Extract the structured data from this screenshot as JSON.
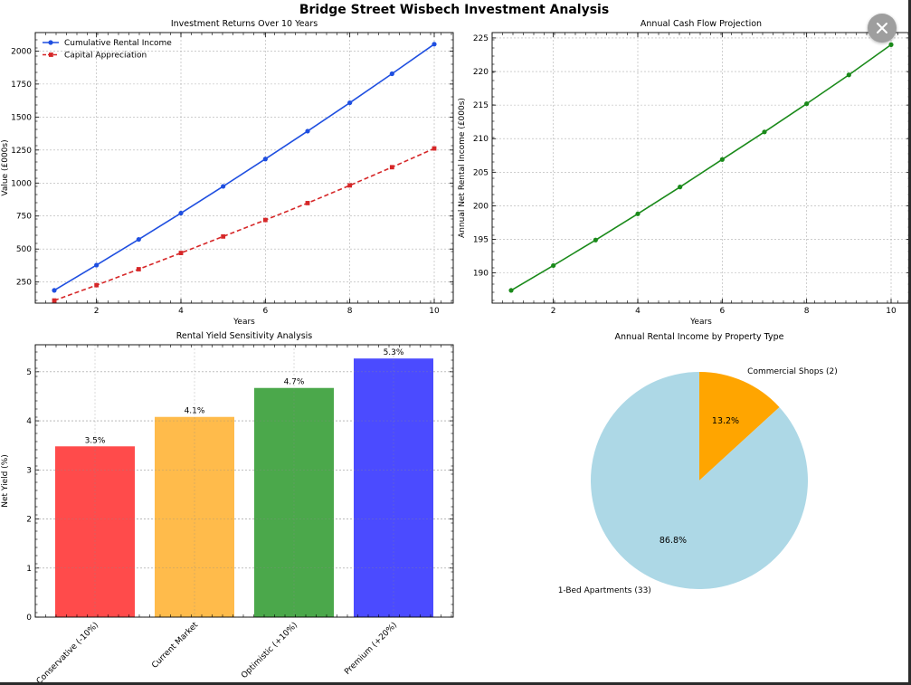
{
  "window": {
    "suptitle": "Bridge Street Wisbech Investment Analysis",
    "close_icon": "close-icon",
    "colors": {
      "close_bg": "#9e9e9e",
      "frame": "#2b2b2b"
    }
  },
  "chart_data": [
    {
      "type": "line",
      "title": "Investment Returns Over 10 Years",
      "xlabel": "Years",
      "ylabel": "Value (£000s)",
      "xlim": [
        0.55,
        10.45
      ],
      "ylim": [
        90,
        2140
      ],
      "xticks": [
        2,
        4,
        6,
        8,
        10
      ],
      "yticks": [
        250,
        500,
        750,
        1000,
        1250,
        1500,
        1750,
        2000
      ],
      "grid": true,
      "legend": "top-left",
      "x": [
        1,
        2,
        3,
        4,
        5,
        6,
        7,
        8,
        9,
        10
      ],
      "series": [
        {
          "name": "Cumulative Rental Income",
          "color": "#1f4fe0",
          "dash": "solid",
          "marker": "circle",
          "values": [
            187,
            378,
            573,
            772,
            975,
            1182,
            1393,
            1608,
            1828,
            2052
          ]
        },
        {
          "name": "Capital Appreciation",
          "color": "#d62728",
          "dash": "dashed",
          "marker": "square",
          "values": [
            110,
            226,
            347,
            470,
            595,
            720,
            848,
            982,
            1120,
            1262
          ]
        }
      ]
    },
    {
      "type": "line",
      "title": "Annual Cash Flow Projection",
      "xlabel": "Years",
      "ylabel": "Annual Net Rental Income (£000s)",
      "xlim": [
        0.55,
        10.45
      ],
      "ylim": [
        185.5,
        225.8
      ],
      "xticks": [
        2,
        4,
        6,
        8,
        10
      ],
      "yticks": [
        190,
        195,
        200,
        205,
        210,
        215,
        220,
        225
      ],
      "grid": true,
      "x": [
        1,
        2,
        3,
        4,
        5,
        6,
        7,
        8,
        9,
        10
      ],
      "series": [
        {
          "color": "#1a8a1a",
          "dash": "solid",
          "marker": "circle",
          "values": [
            187.4,
            191.1,
            194.9,
            198.8,
            202.8,
            206.9,
            211.0,
            215.2,
            219.5,
            224.0
          ]
        }
      ]
    },
    {
      "type": "bar",
      "title": "Rental Yield Sensitivity Analysis",
      "xlabel": "",
      "ylabel": "Net Yield (%)",
      "ylim": [
        0,
        5.55
      ],
      "yticks": [
        0,
        1,
        2,
        3,
        4,
        5
      ],
      "grid": true,
      "categories": [
        "Conservative (-10%)",
        "Current Market",
        "Optimistic (+10%)",
        "Premium (+20%)"
      ],
      "values": [
        3.48,
        4.08,
        4.67,
        5.27
      ],
      "data_labels": [
        "3.5%",
        "4.1%",
        "4.7%",
        "5.3%"
      ],
      "colors": [
        "#ff4b4b",
        "#ffbb4b",
        "#4ba84b",
        "#4b4bff"
      ]
    },
    {
      "type": "pie",
      "title": "Annual Rental Income by Property Type",
      "slices": [
        {
          "label": "Commercial Shops (2)",
          "value": 13.2,
          "pct_label": "13.2%",
          "color": "#ffa500"
        },
        {
          "label": "1-Bed Apartments (33)",
          "value": 86.8,
          "pct_label": "86.8%",
          "color": "#add8e6"
        }
      ]
    }
  ]
}
